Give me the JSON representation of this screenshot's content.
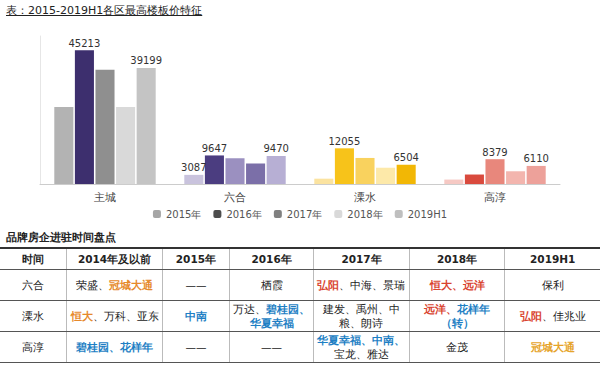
{
  "chart_data": {
    "type": "bar",
    "title": "表：2015-2019H1各区最高楼板价特征",
    "categories": [
      "主城",
      "六合",
      "溧水",
      "高淳"
    ],
    "ylim": [
      0,
      50000
    ],
    "tick_labels": "x",
    "grid": false,
    "legend": "bottom",
    "data_labels": true,
    "series": [
      {
        "name": "2015年",
        "color": "#a6a6a6",
        "colors": [
          "#b3b3b3",
          "#c9c3dd",
          "#fbe3a0",
          "#f6c9c4"
        ],
        "values": [
          26000,
          3087,
          1800,
          1500
        ],
        "value_labels": [
          null,
          "3087",
          null,
          null
        ]
      },
      {
        "name": "2016年",
        "color": "#4d4d4d",
        "colors": [
          "#3d2f6e",
          "#4b3d80",
          "#f7c31a",
          "#d94a3d"
        ],
        "values": [
          45213,
          9647,
          12055,
          3200
        ],
        "value_labels": [
          "45213",
          "9647",
          "12055",
          null
        ]
      },
      {
        "name": "2017年",
        "color": "#808080",
        "colors": [
          "#8f8f8f",
          "#9b90c0",
          "#f9d25e",
          "#e8877c"
        ],
        "values": [
          38600,
          8700,
          8800,
          8379
        ],
        "value_labels": [
          null,
          null,
          null,
          "8379"
        ]
      },
      {
        "name": "2018年",
        "color": "#d9d9d9",
        "colors": [
          "#d9d9d9",
          "#7b6fa8",
          "#fde9a9",
          "#f3b5ae"
        ],
        "values": [
          26000,
          6900,
          5500,
          4300
        ],
        "value_labels": [
          null,
          null,
          null,
          null
        ]
      },
      {
        "name": "2019H1",
        "color": "#bfbfbf",
        "colors": [
          "#c4c4c4",
          "#b7afd4",
          "#f2b705",
          "#eda19a"
        ],
        "values": [
          39199,
          9470,
          6504,
          6110
        ],
        "value_labels": [
          "39199",
          "9470",
          "6504",
          "6110"
        ]
      }
    ]
  },
  "table": {
    "title": "品牌房企进驻时间盘点",
    "rows": [
      [
        [
          {
            "text": "时间"
          }
        ],
        [
          {
            "text": "2014年及以前"
          }
        ],
        [
          {
            "text": "2015年"
          }
        ],
        [
          {
            "text": "2016年"
          }
        ],
        [
          {
            "text": "2017年"
          }
        ],
        [
          {
            "text": "2018年"
          }
        ],
        [
          {
            "text": "2019H1"
          }
        ]
      ],
      [
        [
          {
            "text": "六合"
          }
        ],
        [
          {
            "text": "荣盛、"
          },
          {
            "text": "冠城大通",
            "color": "#e6892b"
          }
        ],
        [
          {
            "text": "——"
          }
        ],
        [
          {
            "text": "栖霞"
          }
        ],
        [
          {
            "text": "弘阳",
            "color": "#d9432f"
          },
          {
            "text": "、中海、景瑞"
          }
        ],
        [
          {
            "text": "恒大、远洋",
            "color": "#d9432f"
          }
        ],
        [
          {
            "text": "保利"
          }
        ]
      ],
      [
        [
          {
            "text": "溧水"
          }
        ],
        [
          {
            "text": "恒大",
            "color": "#e6892b"
          },
          {
            "text": "、万科、亚东"
          }
        ],
        [
          {
            "text": "中南",
            "color": "#1e7fc4"
          }
        ],
        [
          {
            "text": "万达、"
          },
          {
            "text": "碧桂园、华夏幸福",
            "color": "#1e7fc4"
          }
        ],
        [
          {
            "text": "建发、禹州、中粮、朗诗"
          }
        ],
        [
          {
            "text": "远洋、",
            "color": "#d9432f"
          },
          {
            "text": "花样年（转）",
            "color": "#1e7fc4"
          }
        ],
        [
          {
            "text": "弘阳",
            "color": "#d9432f"
          },
          {
            "text": "、佳兆业"
          }
        ]
      ],
      [
        [
          {
            "text": "高淳"
          }
        ],
        [
          {
            "text": "碧桂园、花样年",
            "color": "#1e7fc4"
          }
        ],
        [
          {
            "text": "——"
          }
        ],
        [
          {
            "text": "——"
          }
        ],
        [
          {
            "text": "华夏幸福、中南、",
            "color": "#1e7fc4"
          },
          {
            "text": "宝龙、雅达"
          }
        ],
        [
          {
            "text": "金茂"
          }
        ],
        [
          {
            "text": "冠城大通",
            "color": "#e6a42b"
          }
        ]
      ]
    ]
  }
}
